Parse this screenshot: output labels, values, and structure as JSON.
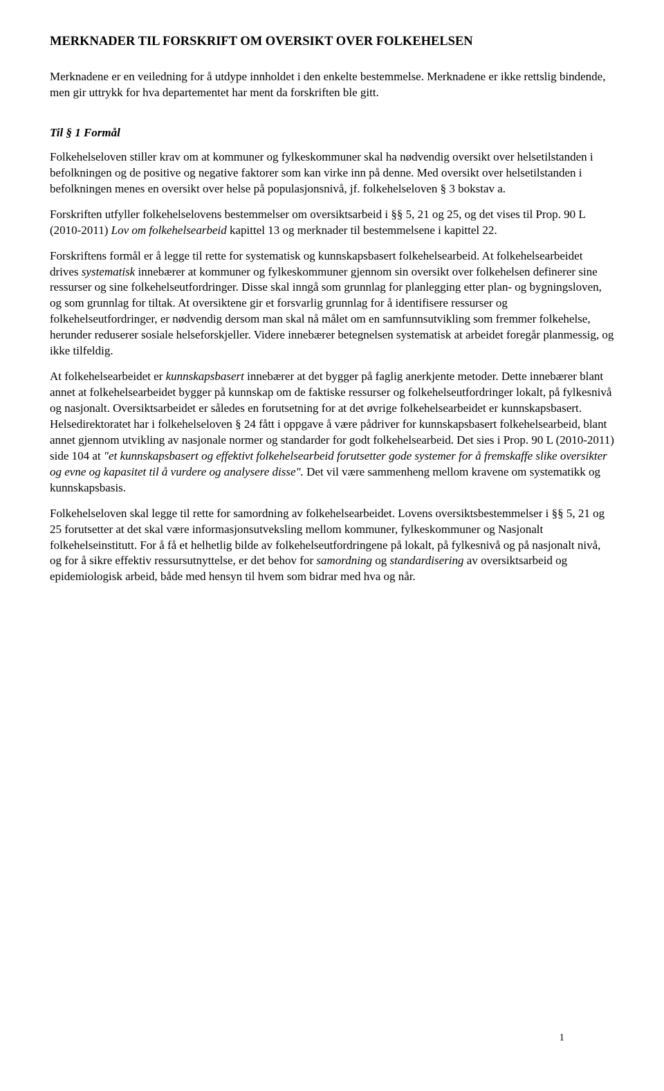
{
  "title": "MERKNADER TIL FORSKRIFT OM OVERSIKT OVER FOLKEHELSEN",
  "intro": "Merknadene er en veiledning for å utdype innholdet i den enkelte bestemmelse. Merknadene er ikke rettslig bindende, men gir uttrykk for hva departementet har ment da forskriften ble gitt.",
  "section_heading": "Til § 1 Formål",
  "p1_a": "Folkehelseloven stiller krav om at kommuner og fylkeskommuner skal ha nødvendig oversikt over helsetilstanden i befolkningen og de positive og negative faktorer som kan virke inn på denne. Med oversikt over helsetilstanden i befolkningen menes en oversikt over helse på populasjonsnivå, jf. folkehelseloven § 3 bokstav a.",
  "p2_a": "Forskriften utfyller folkehelselovens bestemmelser om oversiktsarbeid i §§ 5, 21 og 25, og det vises til Prop. 90 L (2010-2011) ",
  "p2_b": "Lov om folkehelsearbeid",
  "p2_c": " kapittel 13 og merknader til bestemmelsene i kapittel 22.",
  "p3_a": "Forskriftens formål er å legge til rette for systematisk og kunnskapsbasert folkehelsearbeid. At folkehelsearbeidet drives ",
  "p3_b": "systematisk",
  "p3_c": " innebærer at kommuner og fylkeskommuner gjennom sin oversikt over folkehelsen definerer sine ressurser og sine folkehelseutfordringer. Disse skal inngå som grunnlag for planlegging etter plan- og bygningsloven, og som grunnlag for tiltak. At oversiktene gir et forsvarlig grunnlag for å identifisere ressurser og folkehelseutfordringer, er nødvendig dersom man skal nå målet om en samfunnsutvikling som fremmer folkehelse, herunder reduserer sosiale helseforskjeller. Videre innebærer betegnelsen systematisk at arbeidet foregår planmessig, og ikke tilfeldig.",
  "p4_a": "At folkehelsearbeidet er ",
  "p4_b": "kunnskapsbasert",
  "p4_c": " innebærer at det bygger på faglig anerkjente metoder. Dette innebærer blant annet at folkehelsearbeidet bygger på kunnskap om de faktiske ressurser og folkehelseutfordringer lokalt, på fylkesnivå og nasjonalt. Oversiktsarbeidet er således en forutsetning for at det øvrige folkehelsearbeidet er kunnskapsbasert. Helsedirektoratet har i folkehelseloven § 24 fått i oppgave å være pådriver for kunnskapsbasert folkehelsearbeid, blant annet gjennom utvikling av nasjonale normer og standarder for godt folkehelsearbeid. Det sies i Prop. 90 L (2010-2011) side 104 at ",
  "p4_d": "\"et kunnskapsbasert og effektivt folkehelsearbeid forutsetter gode systemer for å fremskaffe slike oversikter og evne og kapasitet til å vurdere og analysere disse\".",
  "p4_e": " Det vil være sammenheng mellom kravene om systematikk og kunnskapsbasis.",
  "p5_a": "Folkehelseloven skal legge til rette for samordning av folkehelsearbeidet. Lovens oversiktsbestemmelser i §§ 5, 21 og 25 forutsetter at det skal være informasjonsutveksling mellom kommuner, fylkeskommuner og Nasjonalt folkehelseinstitutt. For å få et helhetlig bilde av folkehelseutfordringene på lokalt, på fylkesnivå og på nasjonalt nivå, og for å sikre effektiv ressursutnyttelse, er det behov for ",
  "p5_b": "samordning",
  "p5_c": " og ",
  "p5_d": "standardisering",
  "p5_e": " av oversiktsarbeid og epidemiologisk arbeid, både med hensyn til hvem som bidrar med hva og når.",
  "page_number": "1"
}
